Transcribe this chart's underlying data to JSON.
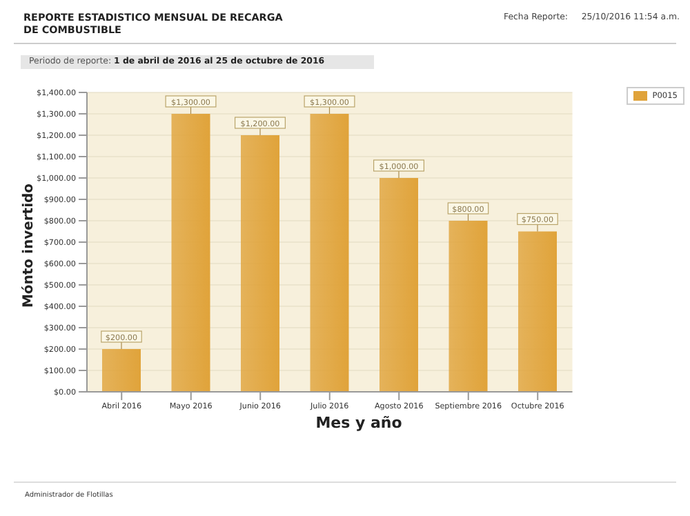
{
  "chart_data": {
    "type": "bar",
    "title": "REPORTE ESTADISTICO MENSUAL DE RECARGA\nDE COMBUSTIBLE",
    "subtitle": "Periodo de reporte: 1 de abril de 2016 al 25 de octubre de 2016",
    "xlabel": "Mes y año",
    "ylabel": "Mónto invertido",
    "annotations": [
      "Fecha Reporte:     25/10/2016 11:54 a.m.",
      "Administrador de Flotillas"
    ],
    "categories": [
      "Abril 2016",
      "Mayo 2016",
      "Junio 2016",
      "Julio 2016",
      "Agosto 2016",
      "Septiembre 2016",
      "Octubre 2016"
    ],
    "series": [
      {
        "name": "P0015",
        "color": "#e0a33a",
        "values": [
          200,
          1300,
          1200,
          1300,
          1000,
          800,
          750
        ],
        "value_labels": [
          "$200.00",
          "$1,300.00",
          "$1,200.00",
          "$1,300.00",
          "$1,000.00",
          "$800.00",
          "$750.00"
        ]
      }
    ],
    "ylim": [
      0,
      1400
    ],
    "yticks": [
      {
        "value": 0,
        "label": "$0.00"
      },
      {
        "value": 100,
        "label": "$100.00"
      },
      {
        "value": 200,
        "label": "$200.00"
      },
      {
        "value": 300,
        "label": "$300.00"
      },
      {
        "value": 400,
        "label": "$400.00"
      },
      {
        "value": 500,
        "label": "$500.00"
      },
      {
        "value": 600,
        "label": "$600.00"
      },
      {
        "value": 700,
        "label": "$700.00"
      },
      {
        "value": 800,
        "label": "$800.00"
      },
      {
        "value": 900,
        "label": "$900.00"
      },
      {
        "value": 1000,
        "label": "$1,000.00"
      },
      {
        "value": 1100,
        "label": "$1,100.00"
      },
      {
        "value": 1200,
        "label": "$1,200.00"
      },
      {
        "value": 1300,
        "label": "$1,300.00"
      },
      {
        "value": 1400,
        "label": "$1,400.00"
      }
    ],
    "grid": "y",
    "legend": "top right"
  }
}
